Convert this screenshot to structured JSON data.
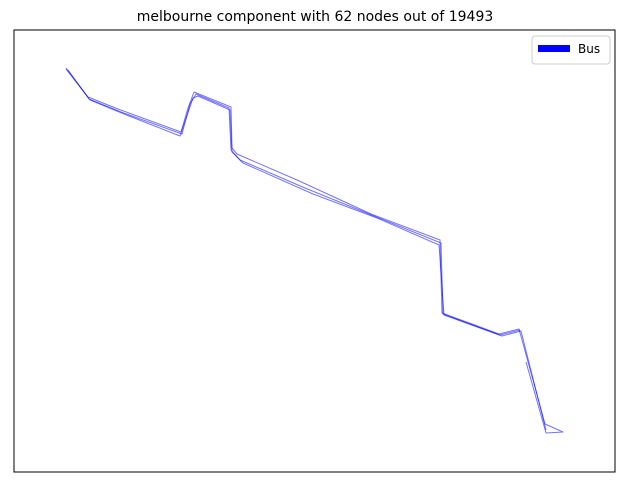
{
  "title": "melbourne component with 62 nodes out of 19493",
  "legend": {
    "placement": "top-right",
    "entries": [
      {
        "label": "Bus",
        "color": "#0000ff"
      }
    ]
  },
  "network": {
    "line_color": "#0000ff",
    "line_opacity": 0.55,
    "axes_ticks_visible": false,
    "grid": false
  }
}
